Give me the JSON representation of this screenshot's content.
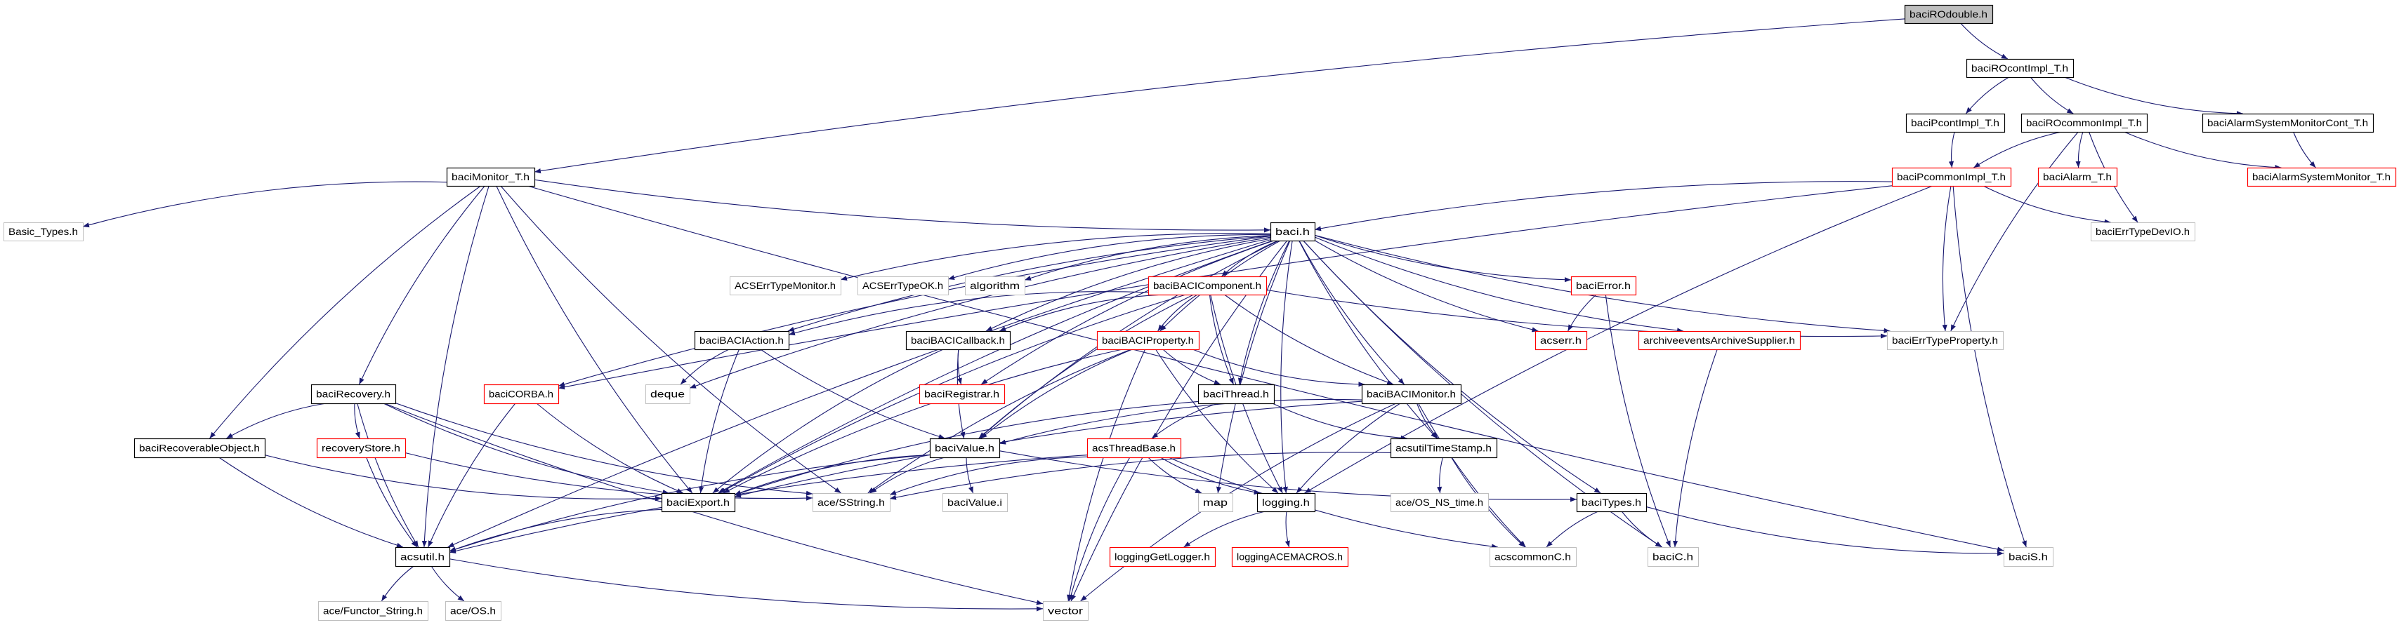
{
  "graph": {
    "root": "baciROdouble.h",
    "colors": {
      "edge": "#191970",
      "root_fill": "#bfbfbf",
      "documented_border": "#000000",
      "truncated_border": "#ff0000",
      "external_border": "#bfbfbf"
    },
    "nodes": [
      {
        "id": "baciROdouble",
        "label": "baciROdouble.h",
        "kind": "root"
      },
      {
        "id": "baciROcontImpl_T",
        "label": "baciROcontImpl_T.h",
        "kind": "documented"
      },
      {
        "id": "baciPcontImpl_T",
        "label": "baciPcontImpl_T.h",
        "kind": "documented"
      },
      {
        "id": "baciROcommonImpl_T",
        "label": "baciROcommonImpl_T.h",
        "kind": "documented"
      },
      {
        "id": "baciAlarmSystemMonitorCont_T",
        "label": "baciAlarmSystemMonitorCont_T.h",
        "kind": "documented"
      },
      {
        "id": "baciPcommonImpl_T",
        "label": "baciPcommonImpl_T.h",
        "kind": "truncated"
      },
      {
        "id": "baciAlarm_T",
        "label": "baciAlarm_T.h",
        "kind": "truncated"
      },
      {
        "id": "baciAlarmSystemMonitor_T",
        "label": "baciAlarmSystemMonitor_T.h",
        "kind": "truncated"
      },
      {
        "id": "baciErrTypeDevIO",
        "label": "baciErrTypeDevIO.h",
        "kind": "external"
      },
      {
        "id": "baciMonitor_T",
        "label": "baciMonitor_T.h",
        "kind": "documented"
      },
      {
        "id": "Basic_Types",
        "label": "Basic_Types.h",
        "kind": "external"
      },
      {
        "id": "baci",
        "label": "baci.h",
        "kind": "documented"
      },
      {
        "id": "ACSErrTypeMonitor",
        "label": "ACSErrTypeMonitor.h",
        "kind": "external"
      },
      {
        "id": "ACSErrTypeOK",
        "label": "ACSErrTypeOK.h",
        "kind": "external"
      },
      {
        "id": "algorithm",
        "label": "algorithm",
        "kind": "external"
      },
      {
        "id": "baciBACIComponent",
        "label": "baciBACIComponent.h",
        "kind": "truncated"
      },
      {
        "id": "baciError",
        "label": "baciError.h",
        "kind": "truncated"
      },
      {
        "id": "baciBACIAction",
        "label": "baciBACIAction.h",
        "kind": "documented"
      },
      {
        "id": "baciBACICallback",
        "label": "baciBACICallback.h",
        "kind": "documented"
      },
      {
        "id": "baciBACIProperty",
        "label": "baciBACIProperty.h",
        "kind": "truncated"
      },
      {
        "id": "acserr",
        "label": "acserr.h",
        "kind": "truncated"
      },
      {
        "id": "archiveevents",
        "label": "archiveeventsArchiveSupplier.h",
        "kind": "truncated"
      },
      {
        "id": "baciErrTypeProperty",
        "label": "baciErrTypeProperty.h",
        "kind": "external"
      },
      {
        "id": "baciRecovery",
        "label": "baciRecovery.h",
        "kind": "documented"
      },
      {
        "id": "baciCORBA",
        "label": "baciCORBA.h",
        "kind": "truncated"
      },
      {
        "id": "deque",
        "label": "deque",
        "kind": "external"
      },
      {
        "id": "baciRegistrar",
        "label": "baciRegistrar.h",
        "kind": "truncated"
      },
      {
        "id": "baciThread",
        "label": "baciThread.h",
        "kind": "documented"
      },
      {
        "id": "baciBACIMonitor",
        "label": "baciBACIMonitor.h",
        "kind": "documented"
      },
      {
        "id": "baciRecoverableObject",
        "label": "baciRecoverableObject.h",
        "kind": "documented"
      },
      {
        "id": "recoveryStore",
        "label": "recoveryStore.h",
        "kind": "truncated"
      },
      {
        "id": "baciValue",
        "label": "baciValue.h",
        "kind": "documented"
      },
      {
        "id": "acsThreadBase",
        "label": "acsThreadBase.h",
        "kind": "truncated"
      },
      {
        "id": "acsutilTimeStamp",
        "label": "acsutilTimeStamp.h",
        "kind": "documented"
      },
      {
        "id": "baciExport",
        "label": "baciExport.h",
        "kind": "documented"
      },
      {
        "id": "aceSString",
        "label": "ace/SString.h",
        "kind": "external"
      },
      {
        "id": "baciValue_i",
        "label": "baciValue.i",
        "kind": "external"
      },
      {
        "id": "map",
        "label": "map",
        "kind": "external"
      },
      {
        "id": "logging",
        "label": "logging.h",
        "kind": "documented"
      },
      {
        "id": "aceOS_NS_time",
        "label": "ace/OS_NS_time.h",
        "kind": "external"
      },
      {
        "id": "baciTypes",
        "label": "baciTypes.h",
        "kind": "documented"
      },
      {
        "id": "acsutil",
        "label": "acsutil.h",
        "kind": "documented"
      },
      {
        "id": "loggingGetLogger",
        "label": "loggingGetLogger.h",
        "kind": "truncated"
      },
      {
        "id": "loggingACEMACROS",
        "label": "loggingACEMACROS.h",
        "kind": "truncated"
      },
      {
        "id": "acscommonC",
        "label": "acscommonC.h",
        "kind": "external"
      },
      {
        "id": "baciC",
        "label": "baciC.h",
        "kind": "external"
      },
      {
        "id": "baciS",
        "label": "baciS.h",
        "kind": "external"
      },
      {
        "id": "aceFunctor_String",
        "label": "ace/Functor_String.h",
        "kind": "external"
      },
      {
        "id": "aceOS",
        "label": "ace/OS.h",
        "kind": "external"
      },
      {
        "id": "vector",
        "label": "vector",
        "kind": "external"
      }
    ],
    "edges": [
      [
        "baciROdouble",
        "baciROcontImpl_T"
      ],
      [
        "baciROdouble",
        "baciMonitor_T"
      ],
      [
        "baciROcontImpl_T",
        "baciPcontImpl_T"
      ],
      [
        "baciROcontImpl_T",
        "baciROcommonImpl_T"
      ],
      [
        "baciROcontImpl_T",
        "baciAlarmSystemMonitorCont_T"
      ],
      [
        "baciPcontImpl_T",
        "baciPcommonImpl_T"
      ],
      [
        "baciROcommonImpl_T",
        "baciPcommonImpl_T"
      ],
      [
        "baciROcommonImpl_T",
        "baciAlarm_T"
      ],
      [
        "baciROcommonImpl_T",
        "baciAlarmSystemMonitor_T"
      ],
      [
        "baciROcommonImpl_T",
        "baciErrTypeDevIO"
      ],
      [
        "baciROcommonImpl_T",
        "baciErrTypeProperty"
      ],
      [
        "baciAlarmSystemMonitorCont_T",
        "baciAlarmSystemMonitor_T"
      ],
      [
        "baciPcommonImpl_T",
        "baci"
      ],
      [
        "baciPcommonImpl_T",
        "baciErrTypeDevIO"
      ],
      [
        "baciPcommonImpl_T",
        "baciErrTypeProperty"
      ],
      [
        "baciPcommonImpl_T",
        "baciS"
      ],
      [
        "baciPcommonImpl_T",
        "baciCORBA"
      ],
      [
        "baciPcommonImpl_T",
        "logging"
      ],
      [
        "baciMonitor_T",
        "Basic_Types"
      ],
      [
        "baciMonitor_T",
        "baci"
      ],
      [
        "baciMonitor_T",
        "baciRecovery"
      ],
      [
        "baciMonitor_T",
        "baciRecoverableObject"
      ],
      [
        "baciMonitor_T",
        "acsutil"
      ],
      [
        "baciMonitor_T",
        "aceSString"
      ],
      [
        "baciMonitor_T",
        "baciS"
      ],
      [
        "baciMonitor_T",
        "baciExport"
      ],
      [
        "baci",
        "ACSErrTypeMonitor"
      ],
      [
        "baci",
        "ACSErrTypeOK"
      ],
      [
        "baci",
        "algorithm"
      ],
      [
        "baci",
        "baciBACIComponent"
      ],
      [
        "baci",
        "baciError"
      ],
      [
        "baci",
        "acserr"
      ],
      [
        "baci",
        "archiveevents"
      ],
      [
        "baci",
        "baciErrTypeProperty"
      ],
      [
        "baci",
        "baciBACIAction"
      ],
      [
        "baci",
        "baciBACICallback"
      ],
      [
        "baci",
        "baciBACIProperty"
      ],
      [
        "baci",
        "baciCORBA"
      ],
      [
        "baci",
        "deque"
      ],
      [
        "baci",
        "baciRegistrar"
      ],
      [
        "baci",
        "baciThread"
      ],
      [
        "baci",
        "baciBACIMonitor"
      ],
      [
        "baci",
        "baciValue"
      ],
      [
        "baci",
        "acsutilTimeStamp"
      ],
      [
        "baci",
        "logging"
      ],
      [
        "baci",
        "baciExport"
      ],
      [
        "baci",
        "acsutil"
      ],
      [
        "baci",
        "baciTypes"
      ],
      [
        "baci",
        "vector"
      ],
      [
        "baci",
        "map"
      ],
      [
        "baci",
        "baciC"
      ],
      [
        "baciBACIComponent",
        "baciBACIAction"
      ],
      [
        "baciBACIComponent",
        "baciBACICallback"
      ],
      [
        "baciBACIComponent",
        "baciBACIProperty"
      ],
      [
        "baciBACIComponent",
        "baciThread"
      ],
      [
        "baciBACIComponent",
        "baciBACIMonitor"
      ],
      [
        "baciBACIComponent",
        "logging"
      ],
      [
        "baciBACIComponent",
        "baciErrTypeProperty"
      ],
      [
        "baciBACIComponent",
        "baciExport"
      ],
      [
        "baciBACIComponent",
        "baciValue"
      ],
      [
        "baciError",
        "acserr"
      ],
      [
        "baciError",
        "baciC"
      ],
      [
        "archiveevents",
        "baciC"
      ],
      [
        "baciBACIAction",
        "deque"
      ],
      [
        "baciBACIAction",
        "baciExport"
      ],
      [
        "baciBACIAction",
        "baciValue"
      ],
      [
        "baciBACICallback",
        "baciRegistrar"
      ],
      [
        "baciBACICallback",
        "baciValue"
      ],
      [
        "baciBACICallback",
        "baciExport"
      ],
      [
        "baciBACIProperty",
        "baciThread"
      ],
      [
        "baciBACIProperty",
        "baciBACIMonitor"
      ],
      [
        "baciBACIProperty",
        "baciValue"
      ],
      [
        "baciBACIProperty",
        "logging"
      ],
      [
        "baciBACIProperty",
        "vector"
      ],
      [
        "baciBACIProperty",
        "baciExport"
      ],
      [
        "baciBACIProperty",
        "aceSString"
      ],
      [
        "baciRecovery",
        "baciRecoverableObject"
      ],
      [
        "baciRecovery",
        "recoveryStore"
      ],
      [
        "baciRecovery",
        "acsutil"
      ],
      [
        "baciRecovery",
        "baciExport"
      ],
      [
        "baciRecovery",
        "aceSString"
      ],
      [
        "baciRecovery",
        "vector"
      ],
      [
        "baciRecoverableObject",
        "acsutil"
      ],
      [
        "baciRecoverableObject",
        "baciExport"
      ],
      [
        "recoveryStore",
        "acsutil"
      ],
      [
        "recoveryStore",
        "aceSString"
      ],
      [
        "baciCORBA",
        "acsutil"
      ],
      [
        "baciCORBA",
        "baciExport"
      ],
      [
        "baciThread",
        "acsThreadBase"
      ],
      [
        "baciThread",
        "acsutilTimeStamp"
      ],
      [
        "baciThread",
        "baciExport"
      ],
      [
        "baciBACIMonitor",
        "acsutilTimeStamp"
      ],
      [
        "baciBACIMonitor",
        "logging"
      ],
      [
        "baciBACIMonitor",
        "baciValue"
      ],
      [
        "baciBACIMonitor",
        "vector"
      ],
      [
        "baciBACIMonitor",
        "acscommonC"
      ],
      [
        "baciBACIMonitor",
        "baciExport"
      ],
      [
        "baciValue",
        "baciValue_i"
      ],
      [
        "baciValue",
        "aceSString"
      ],
      [
        "baciValue",
        "baciTypes"
      ],
      [
        "baciValue",
        "acsutil"
      ],
      [
        "baciValue",
        "baciExport"
      ],
      [
        "acsThreadBase",
        "map"
      ],
      [
        "acsThreadBase",
        "logging"
      ],
      [
        "acsThreadBase",
        "vector"
      ],
      [
        "acsThreadBase",
        "acscommonC"
      ],
      [
        "acsThreadBase",
        "acsutil"
      ],
      [
        "acsThreadBase",
        "aceSString"
      ],
      [
        "acsutilTimeStamp",
        "aceOS_NS_time"
      ],
      [
        "acsutilTimeStamp",
        "acscommonC"
      ],
      [
        "acsutilTimeStamp",
        "aceSString"
      ],
      [
        "logging",
        "loggingGetLogger"
      ],
      [
        "logging",
        "loggingACEMACROS"
      ],
      [
        "baciTypes",
        "acscommonC"
      ],
      [
        "baciTypes",
        "baciC"
      ],
      [
        "baciTypes",
        "baciS"
      ],
      [
        "baciExport",
        "acsutil"
      ],
      [
        "acsutil",
        "aceFunctor_String"
      ],
      [
        "acsutil",
        "aceOS"
      ],
      [
        "acsutil",
        "vector"
      ]
    ]
  }
}
